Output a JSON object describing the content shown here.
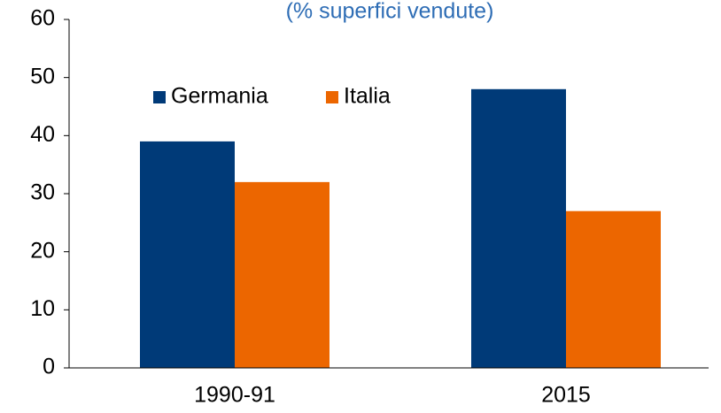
{
  "chart_data": {
    "type": "bar",
    "subtitle": "(% superfici vendute)",
    "categories": [
      "1990-91",
      "2015"
    ],
    "series": [
      {
        "name": "Germania",
        "color": "#003a78",
        "values": [
          39,
          48
        ]
      },
      {
        "name": "Italia",
        "color": "#ec6600",
        "values": [
          32,
          27
        ]
      }
    ],
    "ylim": [
      0,
      60
    ],
    "yticks": [
      0,
      10,
      20,
      30,
      40,
      50,
      60
    ],
    "grid": false,
    "legend": "top-left"
  }
}
